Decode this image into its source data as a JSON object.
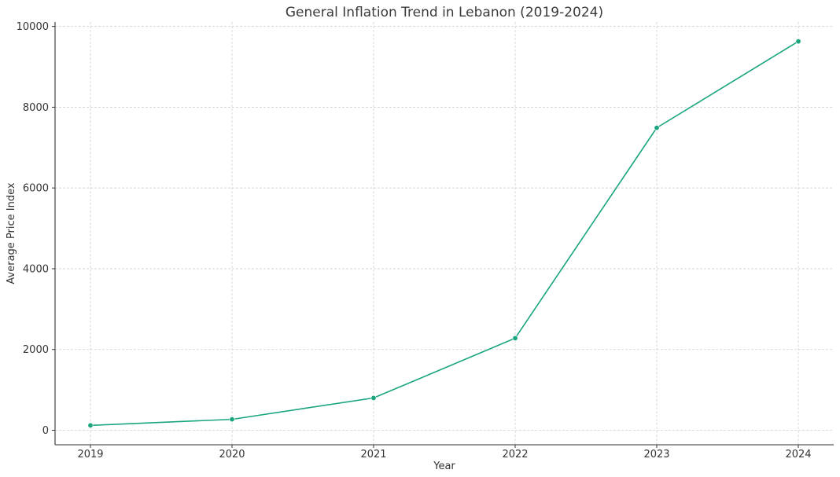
{
  "chart_data": {
    "type": "line",
    "title": "General Inflation Trend in Lebanon (2019-2024)",
    "xlabel": "Year",
    "ylabel": "Average Price Index",
    "x": [
      2019,
      2020,
      2021,
      2022,
      2023,
      2024
    ],
    "x_tick_labels": [
      "2019",
      "2020",
      "2021",
      "2022",
      "2023",
      "2024"
    ],
    "series": [
      {
        "values": [
          120,
          270,
          800,
          2280,
          7490,
          9630
        ]
      }
    ],
    "y_ticks": [
      0,
      2000,
      4000,
      6000,
      8000,
      10000
    ],
    "y_tick_labels": [
      "0",
      "2000",
      "4000",
      "6000",
      "8000",
      "10000"
    ],
    "ylim": [
      -360,
      10110
    ],
    "xlim": [
      2018.75,
      2024.25
    ],
    "grid": true,
    "markers": true,
    "line_color": "#1aa57f"
  }
}
